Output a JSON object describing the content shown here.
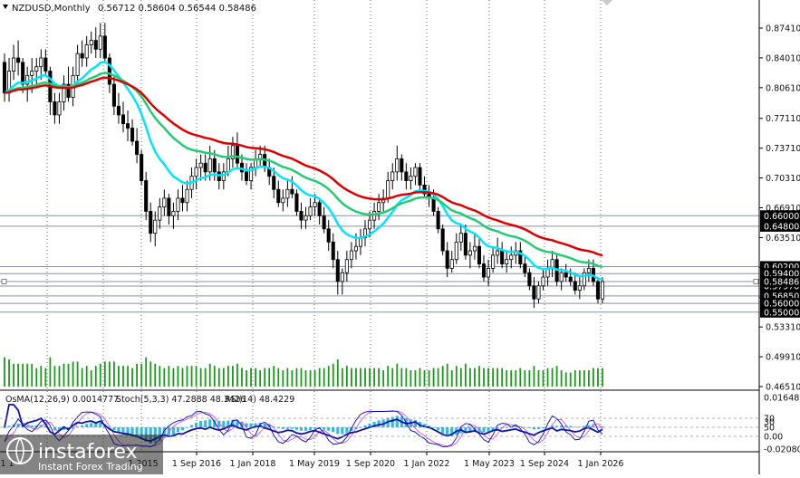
{
  "header": {
    "symbol": "NZDUSD,Monthly",
    "ohlc": "0.56712 0.58604 0.56544 0.58486"
  },
  "indicator_header": {
    "osma": "OsMA(12,26,9) 0.0014777",
    "stoch": "Stoch(5,3,3) 47.2888 48.3426",
    "rsi": "RSI(14) 48.4229"
  },
  "branding": {
    "logo_text": "instaforex",
    "tagline": "Instant Forex Trading"
  },
  "colors": {
    "candle": "#000000",
    "ma_fast": "#00e5ff",
    "ma_mid": "#22cc77",
    "ma_slow": "#dd0000",
    "volume": "#1a9a1a",
    "osma": "#33bbdd",
    "stoch_main": "#0000cc",
    "stoch_signal": "#cc55cc",
    "rsi": "#1111aa",
    "level_line": "#8a8fa8",
    "tag_bg": "#000000"
  },
  "chart_data": {
    "type": "candlestick",
    "timeframe": "Monthly",
    "x_ticks": [
      "1 Sep 2016",
      "1 Jan 2018",
      "1 May 2019",
      "1 Sep 2020",
      "1 Jan 2022",
      "1 May 2023",
      "1 Sep 2024",
      "1 Jan 2026"
    ],
    "x_ticks_partial_left": [
      "1 1",
      "1 2015"
    ],
    "y_ticks": [
      "0.87410",
      "0.84010",
      "0.80610",
      "0.77110",
      "0.73710",
      "0.70310",
      "0.66910",
      "0.63510",
      "0.60110",
      "0.56700",
      "0.53310",
      "0.49910",
      "0.46510"
    ],
    "y_ticks_numeric": [
      0.8741,
      0.8401,
      0.8061,
      0.7711,
      0.7371,
      0.7031,
      0.6691,
      0.6351,
      0.6011,
      0.567,
      0.5331,
      0.4991,
      0.4651
    ],
    "ylim": [
      0.4651,
      0.8741
    ],
    "price_levels": [
      {
        "label": "0.66000",
        "value": 0.66
      },
      {
        "label": "0.64800",
        "value": 0.648
      },
      {
        "label": "0.60200",
        "value": 0.602
      },
      {
        "label": "0.59400",
        "value": 0.594
      },
      {
        "label": "0.57970",
        "value": 0.5797
      },
      {
        "label": "0.56850",
        "value": 0.5685
      },
      {
        "label": "0.56000",
        "value": 0.56
      },
      {
        "label": "0.55000",
        "value": 0.55
      }
    ],
    "current_price": {
      "label": "0.58486",
      "value": 0.58486
    },
    "ohlc_series": [
      [
        0.835,
        0.845,
        0.79,
        0.8
      ],
      [
        0.8,
        0.84,
        0.79,
        0.825
      ],
      [
        0.825,
        0.855,
        0.815,
        0.84
      ],
      [
        0.84,
        0.86,
        0.82,
        0.835
      ],
      [
        0.835,
        0.84,
        0.8,
        0.81
      ],
      [
        0.81,
        0.83,
        0.79,
        0.82
      ],
      [
        0.82,
        0.84,
        0.8,
        0.825
      ],
      [
        0.825,
        0.84,
        0.81,
        0.83
      ],
      [
        0.83,
        0.85,
        0.815,
        0.84
      ],
      [
        0.84,
        0.85,
        0.82,
        0.825
      ],
      [
        0.825,
        0.83,
        0.775,
        0.79
      ],
      [
        0.79,
        0.8,
        0.765,
        0.775
      ],
      [
        0.775,
        0.8,
        0.765,
        0.79
      ],
      [
        0.79,
        0.82,
        0.78,
        0.81
      ],
      [
        0.81,
        0.83,
        0.79,
        0.795
      ],
      [
        0.795,
        0.83,
        0.785,
        0.82
      ],
      [
        0.82,
        0.855,
        0.81,
        0.845
      ],
      [
        0.845,
        0.86,
        0.83,
        0.84
      ],
      [
        0.84,
        0.865,
        0.83,
        0.855
      ],
      [
        0.855,
        0.87,
        0.845,
        0.86
      ],
      [
        0.86,
        0.875,
        0.84,
        0.85
      ],
      [
        0.85,
        0.88,
        0.84,
        0.865
      ],
      [
        0.865,
        0.88,
        0.835,
        0.84
      ],
      [
        0.84,
        0.845,
        0.8,
        0.81
      ],
      [
        0.81,
        0.82,
        0.775,
        0.785
      ],
      [
        0.785,
        0.8,
        0.765,
        0.775
      ],
      [
        0.775,
        0.79,
        0.755,
        0.765
      ],
      [
        0.765,
        0.78,
        0.745,
        0.76
      ],
      [
        0.76,
        0.77,
        0.74,
        0.745
      ],
      [
        0.745,
        0.76,
        0.72,
        0.73
      ],
      [
        0.73,
        0.735,
        0.695,
        0.7
      ],
      [
        0.7,
        0.71,
        0.655,
        0.665
      ],
      [
        0.665,
        0.675,
        0.63,
        0.64
      ],
      [
        0.64,
        0.665,
        0.625,
        0.655
      ],
      [
        0.655,
        0.68,
        0.645,
        0.67
      ],
      [
        0.67,
        0.69,
        0.66,
        0.68
      ],
      [
        0.68,
        0.685,
        0.65,
        0.66
      ],
      [
        0.66,
        0.675,
        0.645,
        0.665
      ],
      [
        0.665,
        0.69,
        0.655,
        0.68
      ],
      [
        0.68,
        0.695,
        0.665,
        0.675
      ],
      [
        0.675,
        0.7,
        0.665,
        0.69
      ],
      [
        0.69,
        0.715,
        0.68,
        0.705
      ],
      [
        0.705,
        0.725,
        0.69,
        0.715
      ],
      [
        0.715,
        0.73,
        0.7,
        0.72
      ],
      [
        0.72,
        0.73,
        0.7,
        0.71
      ],
      [
        0.71,
        0.74,
        0.7,
        0.725
      ],
      [
        0.725,
        0.735,
        0.7,
        0.71
      ],
      [
        0.71,
        0.72,
        0.69,
        0.7
      ],
      [
        0.7,
        0.72,
        0.69,
        0.71
      ],
      [
        0.71,
        0.74,
        0.705,
        0.725
      ],
      [
        0.725,
        0.75,
        0.715,
        0.74
      ],
      [
        0.74,
        0.755,
        0.715,
        0.72
      ],
      [
        0.72,
        0.73,
        0.7,
        0.71
      ],
      [
        0.71,
        0.72,
        0.695,
        0.7
      ],
      [
        0.7,
        0.72,
        0.69,
        0.715
      ],
      [
        0.715,
        0.735,
        0.705,
        0.725
      ],
      [
        0.725,
        0.74,
        0.715,
        0.73
      ],
      [
        0.73,
        0.74,
        0.71,
        0.715
      ],
      [
        0.715,
        0.725,
        0.695,
        0.705
      ],
      [
        0.705,
        0.715,
        0.68,
        0.69
      ],
      [
        0.69,
        0.7,
        0.67,
        0.675
      ],
      [
        0.675,
        0.69,
        0.665,
        0.68
      ],
      [
        0.68,
        0.7,
        0.67,
        0.69
      ],
      [
        0.69,
        0.705,
        0.68,
        0.685
      ],
      [
        0.685,
        0.69,
        0.66,
        0.665
      ],
      [
        0.665,
        0.675,
        0.645,
        0.655
      ],
      [
        0.655,
        0.67,
        0.645,
        0.66
      ],
      [
        0.66,
        0.68,
        0.655,
        0.67
      ],
      [
        0.67,
        0.685,
        0.66,
        0.675
      ],
      [
        0.675,
        0.68,
        0.65,
        0.66
      ],
      [
        0.66,
        0.67,
        0.64,
        0.645
      ],
      [
        0.645,
        0.655,
        0.62,
        0.63
      ],
      [
        0.63,
        0.64,
        0.6,
        0.61
      ],
      [
        0.61,
        0.62,
        0.57,
        0.585
      ],
      [
        0.585,
        0.6,
        0.57,
        0.595
      ],
      [
        0.595,
        0.62,
        0.585,
        0.61
      ],
      [
        0.61,
        0.63,
        0.6,
        0.62
      ],
      [
        0.62,
        0.64,
        0.61,
        0.625
      ],
      [
        0.625,
        0.645,
        0.615,
        0.635
      ],
      [
        0.635,
        0.655,
        0.625,
        0.645
      ],
      [
        0.645,
        0.665,
        0.635,
        0.655
      ],
      [
        0.655,
        0.675,
        0.645,
        0.665
      ],
      [
        0.665,
        0.685,
        0.655,
        0.675
      ],
      [
        0.675,
        0.69,
        0.665,
        0.68
      ],
      [
        0.68,
        0.71,
        0.675,
        0.7
      ],
      [
        0.7,
        0.72,
        0.69,
        0.71
      ],
      [
        0.71,
        0.74,
        0.7,
        0.725
      ],
      [
        0.725,
        0.73,
        0.7,
        0.71
      ],
      [
        0.71,
        0.72,
        0.69,
        0.7
      ],
      [
        0.7,
        0.715,
        0.69,
        0.705
      ],
      [
        0.705,
        0.72,
        0.695,
        0.715
      ],
      [
        0.715,
        0.72,
        0.69,
        0.695
      ],
      [
        0.695,
        0.705,
        0.68,
        0.685
      ],
      [
        0.685,
        0.695,
        0.67,
        0.68
      ],
      [
        0.68,
        0.69,
        0.66,
        0.665
      ],
      [
        0.665,
        0.67,
        0.64,
        0.645
      ],
      [
        0.645,
        0.65,
        0.615,
        0.62
      ],
      [
        0.62,
        0.63,
        0.59,
        0.6
      ],
      [
        0.6,
        0.62,
        0.595,
        0.61
      ],
      [
        0.61,
        0.64,
        0.605,
        0.63
      ],
      [
        0.63,
        0.65,
        0.62,
        0.64
      ],
      [
        0.64,
        0.65,
        0.61,
        0.615
      ],
      [
        0.615,
        0.63,
        0.6,
        0.62
      ],
      [
        0.62,
        0.64,
        0.61,
        0.625
      ],
      [
        0.625,
        0.635,
        0.6,
        0.605
      ],
      [
        0.605,
        0.615,
        0.585,
        0.59
      ],
      [
        0.59,
        0.61,
        0.58,
        0.6
      ],
      [
        0.6,
        0.625,
        0.595,
        0.615
      ],
      [
        0.615,
        0.635,
        0.605,
        0.62
      ],
      [
        0.62,
        0.63,
        0.6,
        0.605
      ],
      [
        0.605,
        0.62,
        0.595,
        0.61
      ],
      [
        0.61,
        0.625,
        0.6,
        0.615
      ],
      [
        0.615,
        0.63,
        0.605,
        0.62
      ],
      [
        0.62,
        0.63,
        0.6,
        0.605
      ],
      [
        0.605,
        0.615,
        0.59,
        0.595
      ],
      [
        0.595,
        0.6,
        0.575,
        0.58
      ],
      [
        0.58,
        0.59,
        0.555,
        0.565
      ],
      [
        0.565,
        0.585,
        0.56,
        0.58
      ],
      [
        0.58,
        0.6,
        0.575,
        0.59
      ],
      [
        0.59,
        0.61,
        0.58,
        0.6
      ],
      [
        0.6,
        0.62,
        0.59,
        0.61
      ],
      [
        0.61,
        0.615,
        0.58,
        0.585
      ],
      [
        0.585,
        0.6,
        0.575,
        0.595
      ],
      [
        0.595,
        0.605,
        0.585,
        0.59
      ],
      [
        0.59,
        0.6,
        0.58,
        0.585
      ],
      [
        0.585,
        0.595,
        0.57,
        0.575
      ],
      [
        0.575,
        0.59,
        0.565,
        0.58
      ],
      [
        0.58,
        0.6,
        0.575,
        0.595
      ],
      [
        0.595,
        0.61,
        0.585,
        0.6
      ],
      [
        0.6,
        0.61,
        0.58,
        0.585
      ],
      [
        0.585,
        0.59,
        0.56,
        0.565
      ],
      [
        0.565,
        0.59,
        0.56,
        0.585
      ]
    ],
    "indicators": {
      "ma_fast_label": "",
      "ma_mid_label": "",
      "ma_slow_label": "",
      "osma_value": 0.0014777,
      "stoch_main": 47.2888,
      "stoch_signal": 48.3426,
      "rsi": 48.4229
    },
    "subwindow_y_ticks": [
      "0.016485",
      "70",
      "50",
      "30",
      "0.00",
      "-0.020807"
    ],
    "subwindow_levels": [
      {
        "label": "70",
        "value": 70
      },
      {
        "label": "50",
        "value": 50
      },
      {
        "label": "30",
        "value": 30
      }
    ],
    "grid": true,
    "legend": "none"
  }
}
